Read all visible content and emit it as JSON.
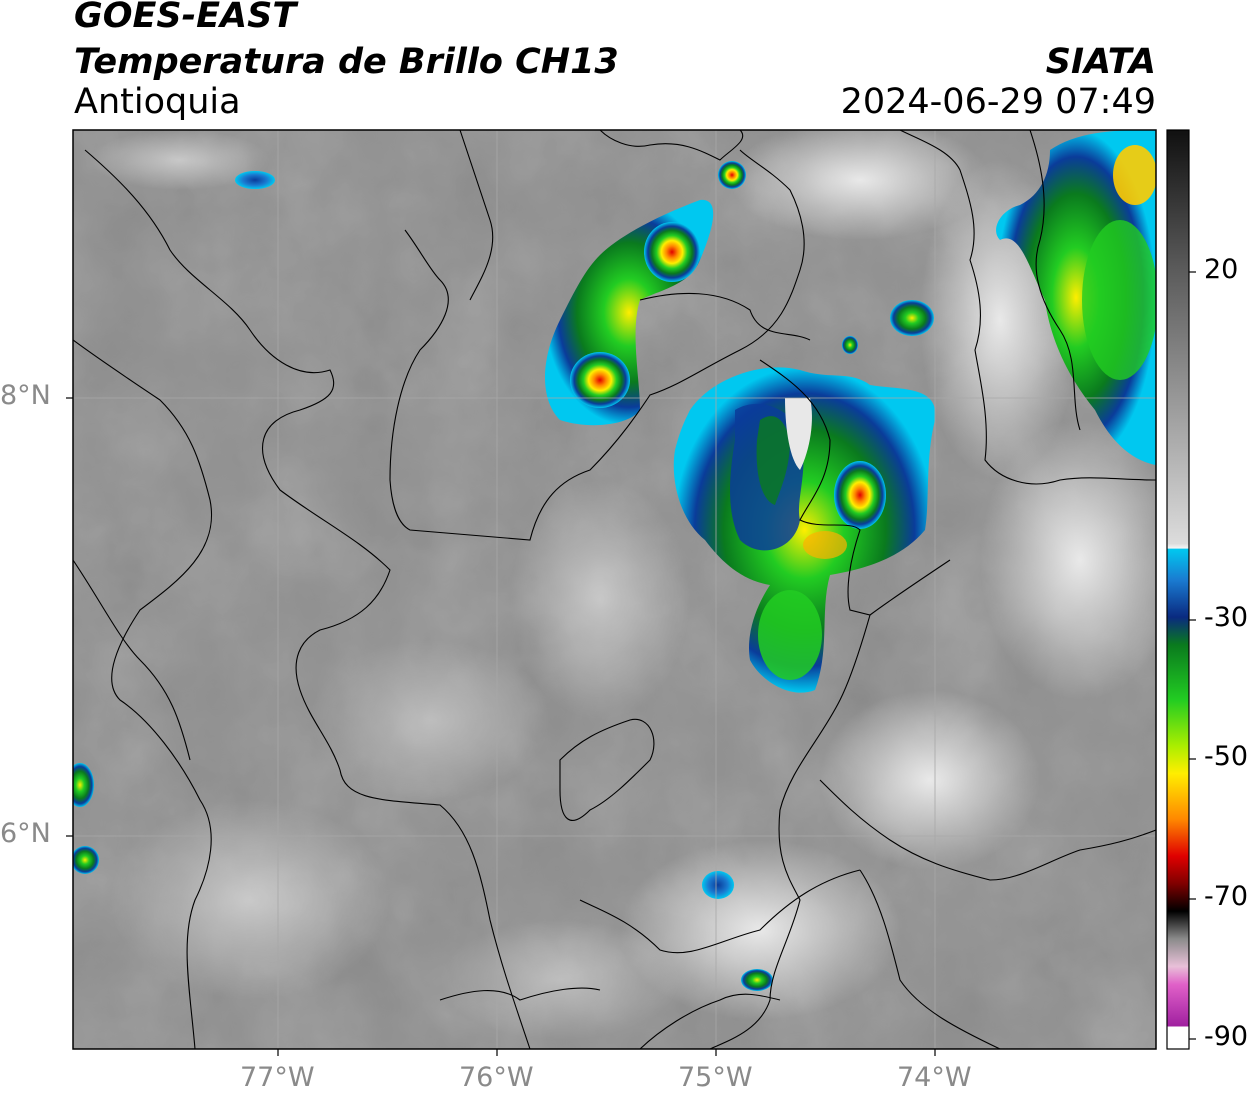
{
  "header": {
    "satellite": "GOES-EAST",
    "product": "Temperatura de Brillo CH13",
    "region": "Antioquia",
    "agency": "SIATA",
    "datetime": "2024-06-29 07:49"
  },
  "axes": {
    "lat_labels": [
      "8°N",
      "6°N"
    ],
    "lon_labels": [
      "77°W",
      "76°W",
      "75°W",
      "74°W"
    ]
  },
  "colorbar": {
    "ticks": [
      "20",
      "-30",
      "-50",
      "-70",
      "-90"
    ],
    "colors": {
      "cyan": "#00c8f0",
      "blue": "#0a3c9a",
      "dark_green": "#0a7a1e",
      "green": "#22cc22",
      "yellow": "#ffee00",
      "orange": "#ff8800",
      "red": "#e00000",
      "dark": "#000000",
      "magenta": "#e060c8",
      "purple": "#a020a0"
    }
  }
}
